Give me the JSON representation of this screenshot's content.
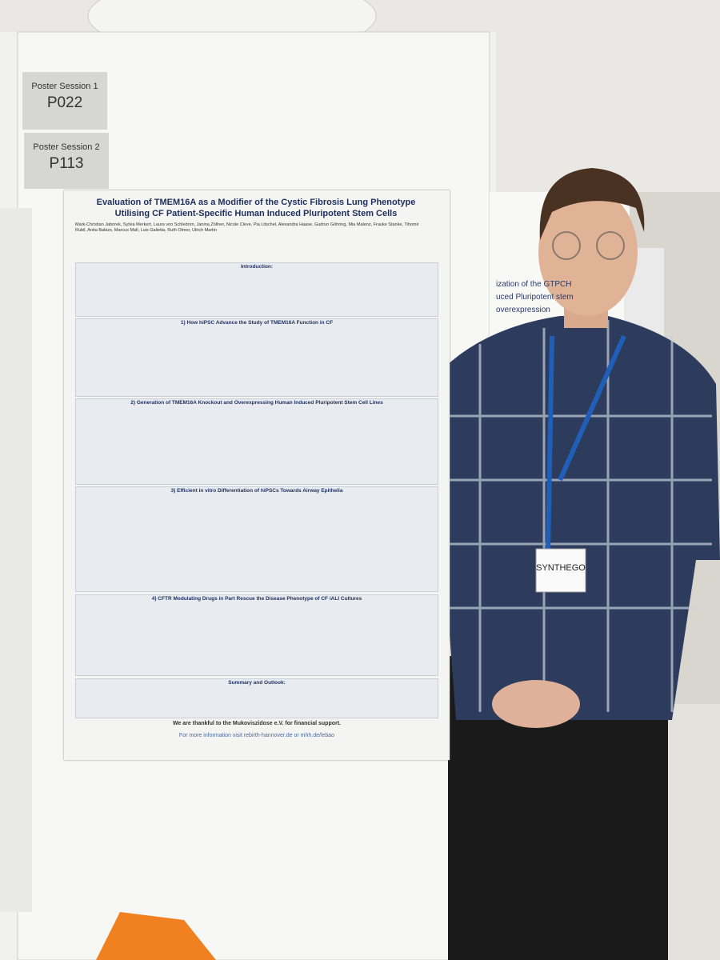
{
  "sign": {
    "session1_label": "Poster Session 1",
    "session1_code": "P022",
    "session2_label": "Poster Session 2",
    "session2_code": "P113"
  },
  "poster": {
    "title": "Evaluation of TMEM16A as a Modifier of the Cystic Fibrosis Lung Phenotype Utilising CF Patient-Specific Human Induced Pluripotent Stem Cells",
    "authors": "Mark-Christian Jaborek, Sylvia Merkert, Laura von Schledorn, Janina Zöllner, Nicole Cleve, Pia Litschel, Alexandra Haase, Gudrun Göhring, Mia Malenz, Frauke Stanke, Tihomir Rubil, Anita Balázs, Marcus Mall, Luis Galietta, Ruth Olmer, Ulrich Martin",
    "sections": [
      "Introduction:",
      "1) How hiPSC Advance the Study of TMEM16A Function in CF",
      "2) Generation of TMEM16A Knockout and Overexpressing Human Induced Pluripotent Stem Cell Lines",
      "3) Efficient in vitro Differentiation of hiPSCs Towards Airway Epithelia",
      "4) CFTR Modulating Drugs in Part Rescue the Disease Phenotype of CF iALI Cultures",
      "Summary and Outlook:"
    ],
    "thanks": "We are thankful to the Mukoviszidose e.V. for financial support.",
    "more_info": "For more information visit rebirth-hannover.de or mhh.de/lebao"
  },
  "neighbor_poster": [
    "ization of the GTPCH",
    "uced Pluripotent stem",
    "overexpression"
  ],
  "badge": "SYNTHEGO"
}
